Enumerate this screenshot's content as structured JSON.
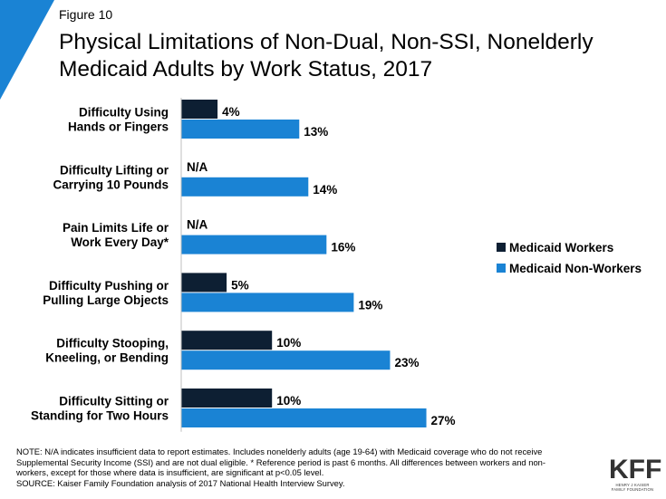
{
  "figure_label": "Figure 10",
  "title_lines": [
    "Physical Limitations of Non-Dual, Non-SSI, Nonelderly",
    "Medicaid Adults by Work Status, 2017"
  ],
  "colors": {
    "workers": "#0d1f33",
    "non_workers": "#1a83d4",
    "accent_triangle": "#1a83d4"
  },
  "chart_data": {
    "type": "bar",
    "orientation": "horizontal",
    "categories": [
      [
        "Difficulty Using",
        "Hands or Fingers"
      ],
      [
        "Difficulty Lifting or",
        "Carrying 10 Pounds"
      ],
      [
        "Pain Limits Life or",
        "Work Every Day*"
      ],
      [
        "Difficulty Pushing or",
        "Pulling Large Objects"
      ],
      [
        "Difficulty Stooping,",
        "Kneeling, or Bending"
      ],
      [
        "Difficulty Sitting or",
        "Standing for Two Hours"
      ]
    ],
    "series": [
      {
        "name": "Medicaid Workers",
        "values": [
          4,
          null,
          null,
          5,
          10,
          10
        ],
        "labels": [
          "4%",
          "N/A",
          "N/A",
          "5%",
          "10%",
          "10%"
        ]
      },
      {
        "name": "Medicaid Non-Workers",
        "values": [
          13,
          14,
          16,
          19,
          23,
          27
        ],
        "labels": [
          "13%",
          "14%",
          "16%",
          "19%",
          "23%",
          "27%"
        ]
      }
    ],
    "xlim": [
      0,
      30
    ],
    "legend_position": "right"
  },
  "notes": [
    "NOTE: N/A indicates insufficient data to report estimates. Includes nonelderly adults (age 19-64) with Medicaid coverage  who do not receive",
    "Supplemental Security Income (SSI) and are not dual eligible. * Reference  period is past 6 months. All differences between workers and non-",
    "workers, except for those where data is insufficient, are significant at p<0.05 level.",
    "SOURCE: Kaiser Family Foundation analysis of 2017 National Health Interview  Survey."
  ],
  "logo": {
    "mark": "KFF",
    "subtitle_lines": [
      "HENRY J KAISER",
      "FAMILY FOUNDATION"
    ]
  }
}
